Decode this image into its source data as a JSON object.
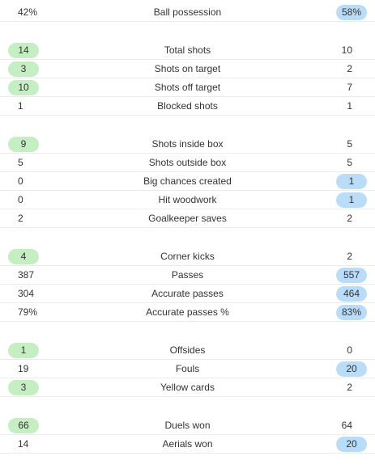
{
  "groups": [
    [
      {
        "label": "Ball possession",
        "home": "42%",
        "away": "58%",
        "leader": "away"
      }
    ],
    [
      {
        "label": "Total shots",
        "home": "14",
        "away": "10",
        "leader": "home"
      },
      {
        "label": "Shots on target",
        "home": "3",
        "away": "2",
        "leader": "home"
      },
      {
        "label": "Shots off target",
        "home": "10",
        "away": "7",
        "leader": "home"
      },
      {
        "label": "Blocked shots",
        "home": "1",
        "away": "1",
        "leader": "none"
      }
    ],
    [
      {
        "label": "Shots inside box",
        "home": "9",
        "away": "5",
        "leader": "home"
      },
      {
        "label": "Shots outside box",
        "home": "5",
        "away": "5",
        "leader": "none"
      },
      {
        "label": "Big chances created",
        "home": "0",
        "away": "1",
        "leader": "away"
      },
      {
        "label": "Hit woodwork",
        "home": "0",
        "away": "1",
        "leader": "away"
      },
      {
        "label": "Goalkeeper saves",
        "home": "2",
        "away": "2",
        "leader": "none"
      }
    ],
    [
      {
        "label": "Corner kicks",
        "home": "4",
        "away": "2",
        "leader": "home"
      },
      {
        "label": "Passes",
        "home": "387",
        "away": "557",
        "leader": "away"
      },
      {
        "label": "Accurate passes",
        "home": "304",
        "away": "464",
        "leader": "away"
      },
      {
        "label": "Accurate passes %",
        "home": "79%",
        "away": "83%",
        "leader": "away"
      }
    ],
    [
      {
        "label": "Offsides",
        "home": "1",
        "away": "0",
        "leader": "home"
      },
      {
        "label": "Fouls",
        "home": "19",
        "away": "20",
        "leader": "away"
      },
      {
        "label": "Yellow cards",
        "home": "3",
        "away": "2",
        "leader": "home"
      }
    ],
    [
      {
        "label": "Duels won",
        "home": "66",
        "away": "64",
        "leader": "home"
      },
      {
        "label": "Aerials won",
        "home": "14",
        "away": "20",
        "leader": "away"
      }
    ]
  ],
  "colors": {
    "home_highlight": "#c6eec3",
    "away_highlight": "#b9dcf8",
    "divider": "#ebebeb",
    "text": "#333333"
  }
}
